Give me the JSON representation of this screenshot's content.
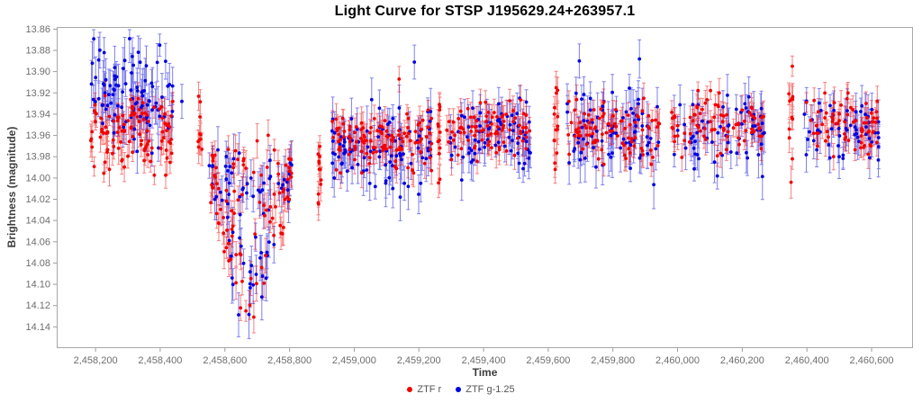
{
  "chart_data": {
    "type": "scatter",
    "title": "Light Curve for STSP J195629.24+263957.1",
    "xlabel": "Time",
    "ylabel": "Brightness (magnitude)",
    "legend_position": "bottom-center",
    "grid": false,
    "y_axis_inverted_magnitudes": true,
    "xlim": [
      2458080,
      2460728
    ],
    "ylim": [
      13.858,
      14.16
    ],
    "x_ticks": [
      2458200,
      2458400,
      2458600,
      2458800,
      2459000,
      2459200,
      2459400,
      2459600,
      2459800,
      2460000,
      2460200,
      2460400,
      2460600
    ],
    "y_ticks": [
      13.86,
      13.88,
      13.9,
      13.92,
      13.94,
      13.96,
      13.98,
      14.0,
      14.02,
      14.04,
      14.06,
      14.08,
      14.1,
      14.12,
      14.14
    ],
    "axis_color": "#a8a8a8",
    "tick_label_color": "#6e6e6e",
    "series": [
      {
        "id": "g",
        "name": "ZTF g-1.25",
        "color": "#0000e0",
        "marker": "circle"
      },
      {
        "id": "r",
        "name": "ZTF r",
        "color": "#f20000",
        "marker": "circle"
      }
    ],
    "legend_order": [
      "r",
      "g"
    ],
    "clusters": [
      {
        "t_min": 2458185,
        "t_max": 2458440,
        "r": {
          "n": 110,
          "mean": 13.956,
          "sigma": 0.018,
          "min": 13.902,
          "max": 14.018,
          "err": [
            0.008,
            0.016
          ]
        },
        "g": {
          "n": 100,
          "mean": 13.924,
          "sigma": 0.024,
          "min": 13.868,
          "max": 13.998,
          "err": [
            0.01,
            0.024
          ]
        }
      },
      {
        "t_min": 2458516,
        "t_max": 2458530,
        "r": {
          "n": 10,
          "mean": 13.95,
          "sigma": 0.02,
          "min": 13.906,
          "max": 13.982,
          "err": [
            0.009,
            0.016
          ]
        }
      },
      {
        "t_min": 2458551,
        "t_max": 2458808,
        "dip": {
          "center": 2458678,
          "half_width": 128,
          "max_depth": 0.125,
          "top": 13.972,
          "base_span": 0.025,
          "jitter": 0.01,
          "min": 13.956,
          "max": 14.145
        },
        "r": {
          "n": 95,
          "err": [
            0.009,
            0.017
          ]
        },
        "g": {
          "n": 75,
          "err": [
            0.011,
            0.024
          ]
        }
      },
      {
        "t_min": 2458888,
        "t_max": 2458898,
        "r": {
          "n": 12,
          "mean": 13.998,
          "sigma": 0.02,
          "min": 13.956,
          "max": 14.04,
          "err": [
            0.009,
            0.016
          ]
        }
      },
      {
        "t_min": 2458930,
        "t_max": 2459240,
        "r": {
          "n": 120,
          "mean": 13.963,
          "sigma": 0.014,
          "min": 13.918,
          "max": 14.005,
          "err": [
            0.008,
            0.016
          ]
        },
        "g": {
          "n": 95,
          "mean": 13.972,
          "sigma": 0.02,
          "min": 13.912,
          "max": 14.045,
          "err": [
            0.011,
            0.024
          ]
        }
      },
      {
        "t_min": 2459256,
        "t_max": 2459268,
        "r": {
          "n": 12,
          "mean": 13.96,
          "sigma": 0.028,
          "min": 13.902,
          "max": 14.02,
          "err": [
            0.009,
            0.016
          ]
        }
      },
      {
        "t_min": 2459283,
        "t_max": 2459545,
        "r": {
          "n": 85,
          "mean": 13.956,
          "sigma": 0.013,
          "min": 13.92,
          "max": 13.998,
          "err": [
            0.008,
            0.015
          ]
        },
        "g": {
          "n": 70,
          "mean": 13.962,
          "sigma": 0.018,
          "min": 13.905,
          "max": 14.025,
          "err": [
            0.011,
            0.022
          ]
        }
      },
      {
        "t_min": 2459618,
        "t_max": 2459630,
        "r": {
          "n": 13,
          "mean": 13.944,
          "sigma": 0.022,
          "min": 13.9,
          "max": 13.992,
          "err": [
            0.009,
            0.016
          ]
        }
      },
      {
        "t_min": 2459655,
        "t_max": 2459945,
        "r": {
          "n": 90,
          "mean": 13.955,
          "sigma": 0.014,
          "min": 13.918,
          "max": 13.998,
          "err": [
            0.008,
            0.015
          ]
        },
        "g": {
          "n": 78,
          "mean": 13.958,
          "sigma": 0.021,
          "min": 13.885,
          "max": 14.03,
          "err": [
            0.011,
            0.024
          ]
        }
      },
      {
        "t_min": 2459978,
        "t_max": 2460270,
        "r": {
          "n": 80,
          "mean": 13.95,
          "sigma": 0.014,
          "min": 13.915,
          "max": 13.995,
          "err": [
            0.008,
            0.015
          ]
        },
        "g": {
          "n": 62,
          "mean": 13.955,
          "sigma": 0.019,
          "min": 13.898,
          "max": 14.02,
          "err": [
            0.011,
            0.022
          ]
        }
      },
      {
        "t_min": 2460344,
        "t_max": 2460358,
        "r": {
          "n": 11,
          "mean": 13.934,
          "sigma": 0.024,
          "min": 13.888,
          "max": 13.982,
          "err": [
            0.009,
            0.016
          ]
        }
      },
      {
        "t_min": 2460392,
        "t_max": 2460622,
        "r": {
          "n": 70,
          "mean": 13.95,
          "sigma": 0.013,
          "min": 13.916,
          "max": 13.992,
          "err": [
            0.008,
            0.015
          ]
        },
        "g": {
          "n": 55,
          "mean": 13.952,
          "sigma": 0.017,
          "min": 13.9,
          "max": 14.005,
          "err": [
            0.01,
            0.021
          ]
        }
      }
    ],
    "outliers": [
      {
        "series": "r",
        "t": 2460351,
        "mag": 14.004,
        "err": 0.015
      },
      {
        "series": "r",
        "t": 2459139,
        "mag": 13.907,
        "err": 0.012
      },
      {
        "series": "g",
        "t": 2458467,
        "mag": 13.928,
        "err": 0.016
      },
      {
        "series": "g",
        "t": 2459186,
        "mag": 13.891,
        "err": 0.016
      },
      {
        "series": "g",
        "t": 2459696,
        "mag": 13.89,
        "err": 0.016
      },
      {
        "series": "g",
        "t": 2459882,
        "mag": 13.888,
        "err": 0.018
      }
    ]
  }
}
